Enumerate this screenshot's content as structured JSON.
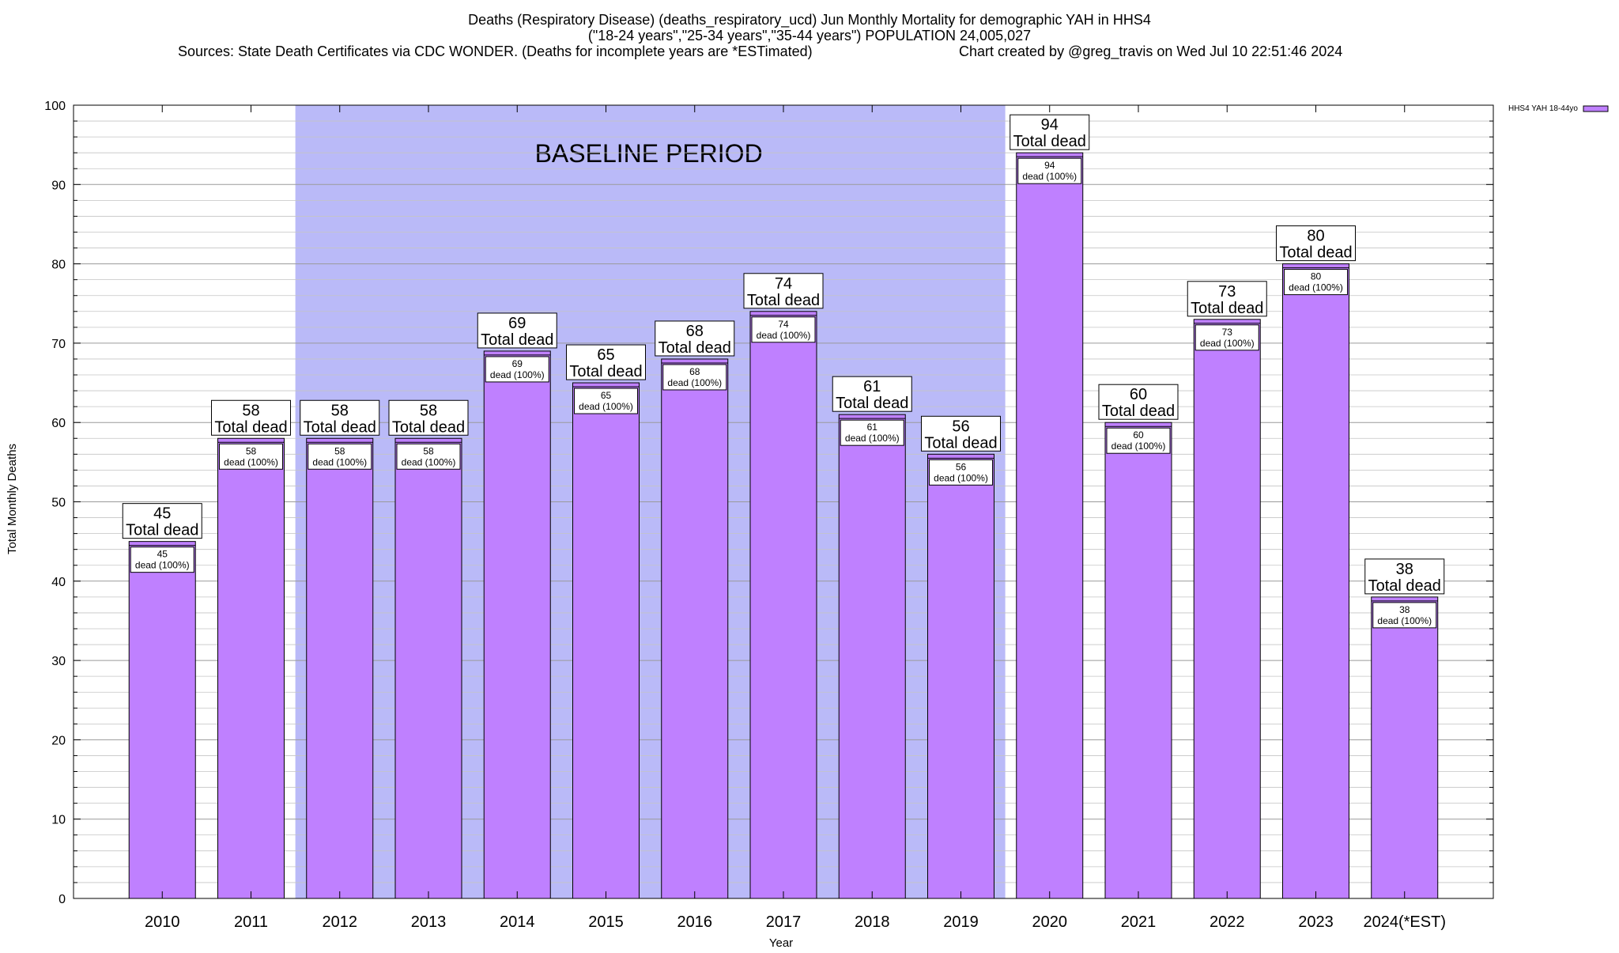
{
  "header": {
    "title_line1": "Deaths (Respiratory Disease) (deaths_respiratory_ucd) Jun Monthly Mortality for demographic YAH in HHS4",
    "title_line2": "(\"18-24 years\",\"25-34 years\",\"35-44 years\") POPULATION 24,005,027",
    "sources": "Sources: State Death Certificates via CDC WONDER. (Deaths for incomplete years are *ESTimated)",
    "credit": "Chart created by @greg_travis on Wed Jul 10 22:51:46 2024"
  },
  "chart_data": {
    "type": "bar",
    "title": "Deaths (Respiratory Disease) (deaths_respiratory_ucd) Jun Monthly Mortality for demographic YAH in HHS4",
    "xlabel": "Year",
    "ylabel": "Total Monthly Deaths",
    "ylim": [
      0,
      100
    ],
    "y_ticks": [
      0,
      10,
      20,
      30,
      40,
      50,
      60,
      70,
      80,
      90,
      100
    ],
    "grid": true,
    "legend_position": "top-right",
    "categories": [
      "2010",
      "2011",
      "2012",
      "2013",
      "2014",
      "2015",
      "2016",
      "2017",
      "2018",
      "2019",
      "2020",
      "2021",
      "2022",
      "2023",
      "2024(*EST)"
    ],
    "series": [
      {
        "name": "HHS4 YAH 18-44yo",
        "color": "#bf80ff",
        "values": [
          45,
          58,
          58,
          58,
          69,
          65,
          68,
          74,
          61,
          56,
          94,
          60,
          73,
          80,
          38
        ]
      }
    ],
    "top_label_suffix": "Total dead",
    "inner_label_suffix": "dead (100%)",
    "baseline_period": {
      "label": "BASELINE PERIOD",
      "from": "2012",
      "to": "2019",
      "color": "#babaf8"
    }
  }
}
